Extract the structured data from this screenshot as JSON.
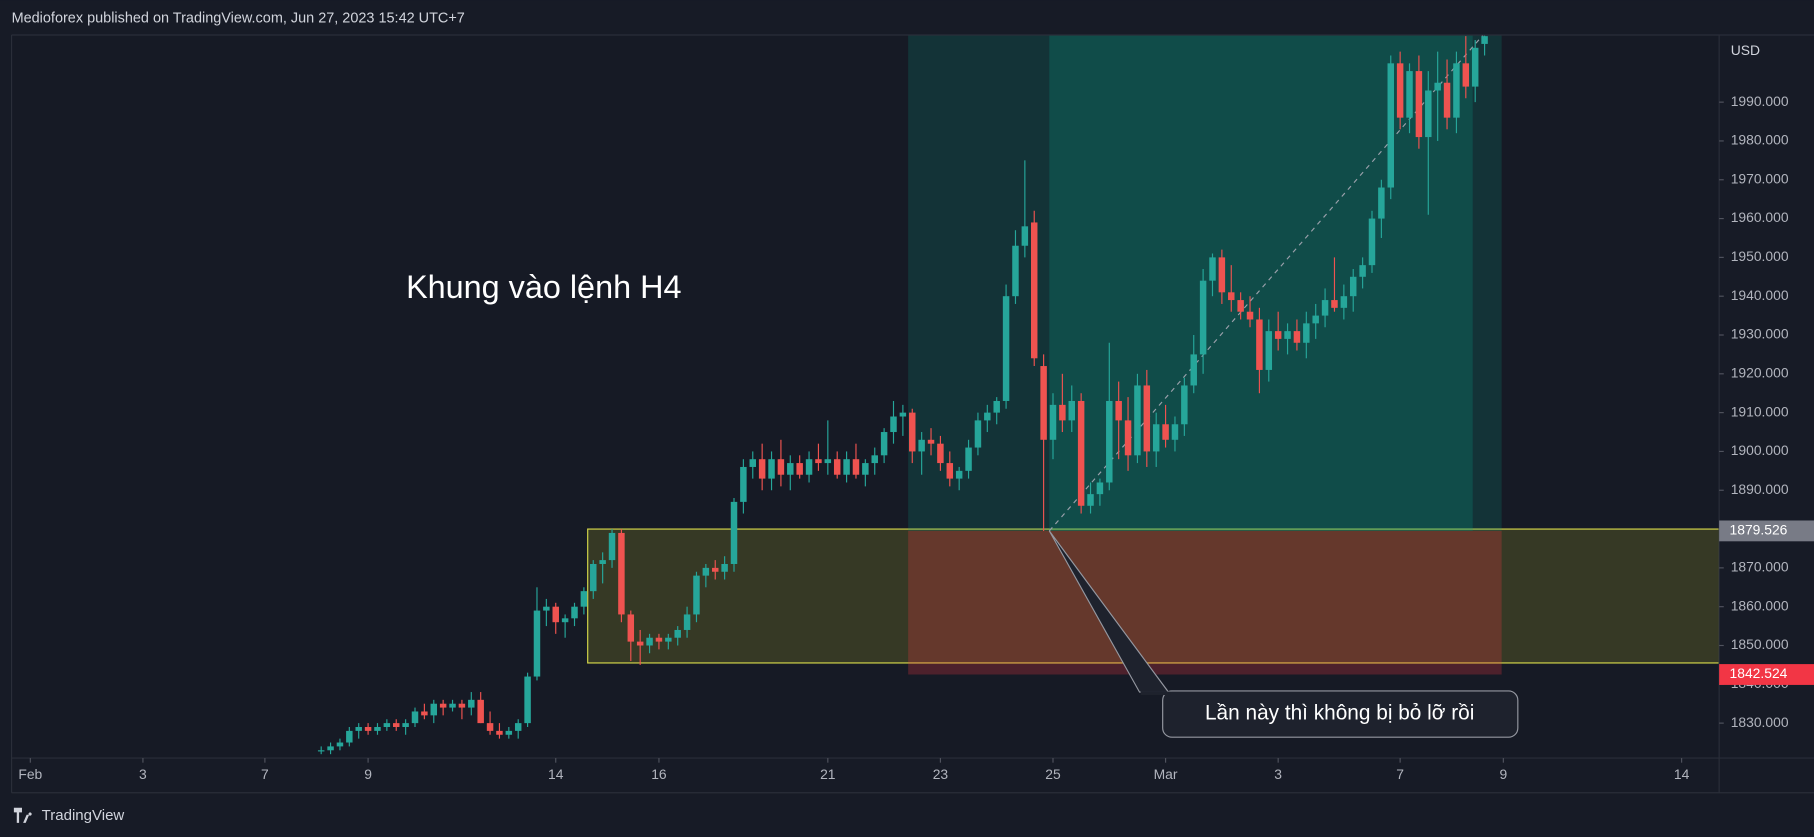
{
  "header": "Medioforex published on TradingView.com, Jun 27, 2023 15:42 UTC+7",
  "footer": "TradingView",
  "chart_data": {
    "type": "candlestick",
    "annotation": "Khung vào lệnh H4",
    "callout": "Lần này thì không bị bỏ lỡ rồi",
    "currency": "USD",
    "up_color": "#26a69a",
    "down_color": "#ef5350",
    "ylim": [
      1821,
      2007.3
    ],
    "yticks": [
      {
        "value": 1830,
        "label": "1830.000"
      },
      {
        "value": 1840,
        "label": "1840.000"
      },
      {
        "value": 1850,
        "label": "1850.000"
      },
      {
        "value": 1860,
        "label": "1860.000"
      },
      {
        "value": 1870,
        "label": "1870.000"
      },
      {
        "value": 1880,
        "label": "1880.000"
      },
      {
        "value": 1890,
        "label": "1890.000"
      },
      {
        "value": 1900,
        "label": "1900.000"
      },
      {
        "value": 1910,
        "label": "1910.000"
      },
      {
        "value": 1920,
        "label": "1920.000"
      },
      {
        "value": 1930,
        "label": "1930.000"
      },
      {
        "value": 1940,
        "label": "1940.000"
      },
      {
        "value": 1950,
        "label": "1950.000"
      },
      {
        "value": 1960,
        "label": "1960.000"
      },
      {
        "value": 1970,
        "label": "1970.000"
      },
      {
        "value": 1980,
        "label": "1980.000"
      },
      {
        "value": 1990,
        "label": "1990.000"
      }
    ],
    "xlim": [
      -33,
      149
    ],
    "xticks": [
      {
        "value": -31,
        "label": "Feb"
      },
      {
        "value": -19,
        "label": "3"
      },
      {
        "value": -6,
        "label": "7"
      },
      {
        "value": 5,
        "label": "9"
      },
      {
        "value": 25,
        "label": "14"
      },
      {
        "value": 36,
        "label": "16"
      },
      {
        "value": 54,
        "label": "21"
      },
      {
        "value": 66,
        "label": "23"
      },
      {
        "value": 78,
        "label": "25"
      },
      {
        "value": 90,
        "label": "Mar"
      },
      {
        "value": 102,
        "label": "3"
      },
      {
        "value": 115,
        "label": "7"
      },
      {
        "value": 126,
        "label": "9"
      },
      {
        "value": 145,
        "label": "14"
      }
    ],
    "entry": 1879.526,
    "stop": 1842.524,
    "demand_zone": [
      1845.5,
      1880
    ],
    "ohlc": [
      [
        1823,
        1824,
        1822,
        1823
      ],
      [
        1823,
        1825,
        1822,
        1824
      ],
      [
        1824,
        1826,
        1823,
        1825
      ],
      [
        1825,
        1829,
        1824,
        1828
      ],
      [
        1828,
        1830,
        1826,
        1829
      ],
      [
        1829,
        1830,
        1827,
        1828
      ],
      [
        1828,
        1830,
        1827,
        1829
      ],
      [
        1829,
        1831,
        1828,
        1830
      ],
      [
        1830,
        1831,
        1828,
        1829
      ],
      [
        1829,
        1831,
        1827,
        1830
      ],
      [
        1830,
        1834,
        1829,
        1833
      ],
      [
        1833,
        1835,
        1831,
        1832
      ],
      [
        1832,
        1836,
        1830,
        1835
      ],
      [
        1835,
        1836,
        1832,
        1834
      ],
      [
        1834,
        1836,
        1833,
        1835
      ],
      [
        1835,
        1836,
        1831,
        1834
      ],
      [
        1834,
        1838,
        1832,
        1836
      ],
      [
        1836,
        1838,
        1830,
        1830
      ],
      [
        1830,
        1833,
        1827,
        1828
      ],
      [
        1828,
        1830,
        1826,
        1827
      ],
      [
        1827,
        1829,
        1826,
        1828
      ],
      [
        1828,
        1831,
        1826,
        1830
      ],
      [
        1830,
        1843,
        1829,
        1842
      ],
      [
        1842,
        1865,
        1841,
        1859
      ],
      [
        1859,
        1862,
        1855,
        1860
      ],
      [
        1860,
        1861,
        1853,
        1856
      ],
      [
        1856,
        1858,
        1852,
        1857
      ],
      [
        1857,
        1861,
        1855,
        1860
      ],
      [
        1860,
        1865,
        1858,
        1864
      ],
      [
        1864,
        1872,
        1862,
        1871
      ],
      [
        1871,
        1874,
        1866,
        1872
      ],
      [
        1872,
        1880,
        1870,
        1879
      ],
      [
        1879,
        1880,
        1856,
        1858
      ],
      [
        1858,
        1859,
        1846,
        1851
      ],
      [
        1851,
        1854,
        1845,
        1850
      ],
      [
        1850,
        1853,
        1848,
        1852
      ],
      [
        1852,
        1853,
        1849,
        1851
      ],
      [
        1851,
        1853,
        1849,
        1852
      ],
      [
        1852,
        1855,
        1850,
        1854
      ],
      [
        1854,
        1860,
        1852,
        1858
      ],
      [
        1858,
        1869,
        1856,
        1868
      ],
      [
        1868,
        1871,
        1865,
        1870
      ],
      [
        1870,
        1872,
        1867,
        1869
      ],
      [
        1869,
        1873,
        1867,
        1871
      ],
      [
        1871,
        1888,
        1869,
        1887
      ],
      [
        1887,
        1898,
        1884,
        1896
      ],
      [
        1896,
        1900,
        1893,
        1898
      ],
      [
        1898,
        1902,
        1890,
        1893
      ],
      [
        1893,
        1900,
        1890,
        1898
      ],
      [
        1898,
        1903,
        1891,
        1894
      ],
      [
        1894,
        1899,
        1890,
        1897
      ],
      [
        1897,
        1899,
        1893,
        1894
      ],
      [
        1894,
        1900,
        1892,
        1898
      ],
      [
        1898,
        1902,
        1895,
        1897
      ],
      [
        1897,
        1908,
        1894,
        1898
      ],
      [
        1898,
        1900,
        1893,
        1894
      ],
      [
        1894,
        1900,
        1892,
        1898
      ],
      [
        1898,
        1902,
        1893,
        1894
      ],
      [
        1894,
        1898,
        1891,
        1897
      ],
      [
        1897,
        1901,
        1894,
        1899
      ],
      [
        1899,
        1906,
        1897,
        1905
      ],
      [
        1905,
        1913,
        1902,
        1909
      ],
      [
        1909,
        1912,
        1904,
        1910
      ],
      [
        1910,
        1911,
        1897,
        1900
      ],
      [
        1900,
        1905,
        1894,
        1903
      ],
      [
        1903,
        1906,
        1899,
        1902
      ],
      [
        1902,
        1904,
        1895,
        1897
      ],
      [
        1897,
        1900,
        1891,
        1893
      ],
      [
        1893,
        1896,
        1890,
        1895
      ],
      [
        1895,
        1903,
        1893,
        1901
      ],
      [
        1901,
        1910,
        1899,
        1908
      ],
      [
        1908,
        1912,
        1905,
        1910
      ],
      [
        1910,
        1914,
        1907,
        1913
      ],
      [
        1913,
        1943,
        1911,
        1940
      ],
      [
        1940,
        1957,
        1938,
        1953
      ],
      [
        1953,
        1975,
        1950,
        1958
      ],
      [
        1959,
        1962,
        1922,
        1924
      ],
      [
        1922,
        1925,
        1879.5,
        1903
      ],
      [
        1903,
        1915,
        1898,
        1912
      ],
      [
        1912,
        1920,
        1905,
        1908
      ],
      [
        1908,
        1917,
        1905,
        1913
      ],
      [
        1913,
        1915,
        1884,
        1886
      ],
      [
        1886,
        1892,
        1884,
        1889
      ],
      [
        1889,
        1893,
        1886,
        1892
      ],
      [
        1892,
        1928,
        1890,
        1913
      ],
      [
        1913,
        1918,
        1898,
        1908
      ],
      [
        1908,
        1914,
        1895,
        1899
      ],
      [
        1899,
        1920,
        1897,
        1917
      ],
      [
        1917,
        1921,
        1896,
        1900
      ],
      [
        1900,
        1910,
        1896,
        1907
      ],
      [
        1907,
        1912,
        1901,
        1903
      ],
      [
        1903,
        1909,
        1900,
        1907
      ],
      [
        1907,
        1919,
        1904,
        1917
      ],
      [
        1917,
        1930,
        1915,
        1925
      ],
      [
        1925,
        1947,
        1920,
        1944
      ],
      [
        1944,
        1951,
        1940,
        1950
      ],
      [
        1950,
        1952,
        1938,
        1941
      ],
      [
        1941,
        1948,
        1936,
        1939
      ],
      [
        1939,
        1941,
        1934,
        1936
      ],
      [
        1936,
        1940,
        1932,
        1934
      ],
      [
        1934,
        1937,
        1915,
        1921
      ],
      [
        1921,
        1934,
        1918,
        1931
      ],
      [
        1931,
        1936,
        1926,
        1929
      ],
      [
        1929,
        1933,
        1925,
        1931
      ],
      [
        1931,
        1934,
        1926,
        1928
      ],
      [
        1928,
        1936,
        1924,
        1933
      ],
      [
        1933,
        1938,
        1929,
        1935
      ],
      [
        1935,
        1942,
        1932,
        1939
      ],
      [
        1939,
        1950,
        1936,
        1937
      ],
      [
        1937,
        1943,
        1934,
        1940
      ],
      [
        1940,
        1947,
        1936,
        1945
      ],
      [
        1945,
        1950,
        1942,
        1948
      ],
      [
        1948,
        1962,
        1946,
        1960
      ],
      [
        1960,
        1970,
        1955,
        1968
      ],
      [
        1968,
        2002,
        1965,
        2000
      ],
      [
        2000,
        2003,
        1983,
        1986
      ],
      [
        1986,
        2000,
        1982,
        1998
      ],
      [
        1998,
        2002,
        1978,
        1981
      ],
      [
        1981,
        1998,
        1961,
        1993
      ],
      [
        1993,
        2003,
        1980,
        1995
      ],
      [
        1995,
        2001,
        1983,
        1986
      ],
      [
        1986,
        2003,
        1982,
        2000
      ],
      [
        2000,
        2007,
        1991,
        1994
      ],
      [
        1994,
        2006,
        1990,
        2004
      ],
      [
        2005,
        2008,
        2002,
        2007
      ]
    ]
  }
}
